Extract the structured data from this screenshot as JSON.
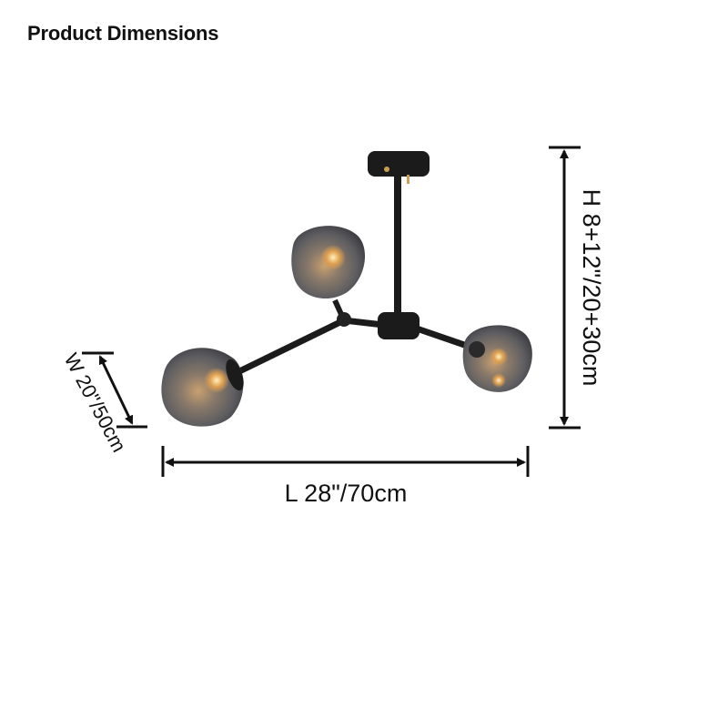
{
  "title": "Product Dimensions",
  "dimensions": {
    "length": "L 28\"/70cm",
    "width": "W 20\"/50cm",
    "height": "H 8+12\"/20+30cm"
  },
  "product": {
    "colors": {
      "metal": "#1b1b1b",
      "glass": "#6f6f73",
      "bulb": "#e0a050"
    }
  }
}
